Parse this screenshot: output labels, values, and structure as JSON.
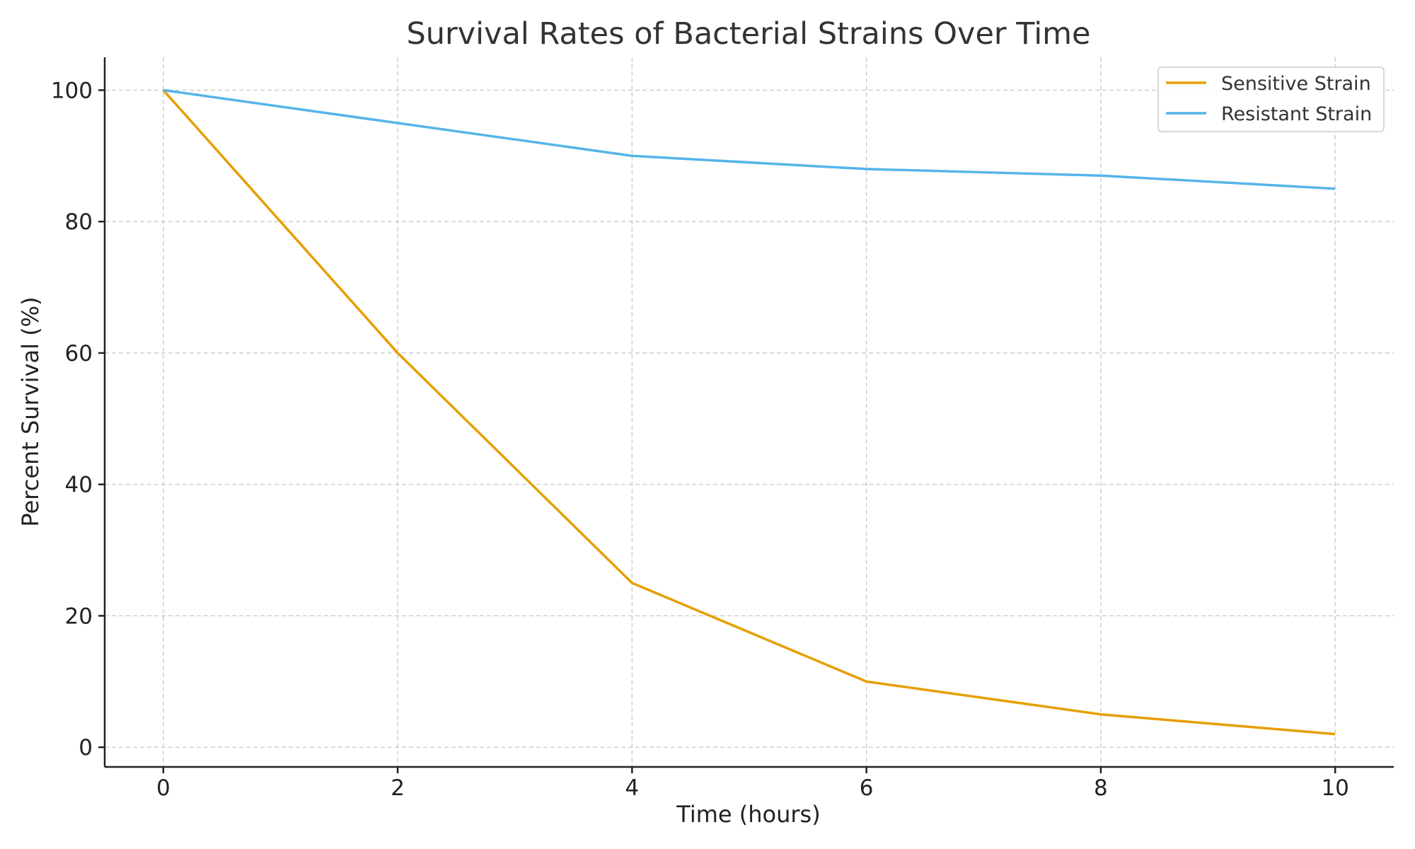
{
  "chart_data": {
    "type": "line",
    "title": "Survival Rates of Bacterial Strains Over Time",
    "xlabel": "Time (hours)",
    "ylabel": "Percent Survival (%)",
    "x": [
      0,
      2,
      4,
      6,
      8,
      10
    ],
    "x_ticks": [
      0,
      2,
      4,
      6,
      8,
      10
    ],
    "y_ticks": [
      0,
      20,
      40,
      60,
      80,
      100
    ],
    "xlim": [
      -0.5,
      10.5
    ],
    "ylim": [
      -3,
      105
    ],
    "grid": true,
    "legend_position": "top-right",
    "series": [
      {
        "name": "Sensitive Strain",
        "color": "#E69F00",
        "values": [
          100,
          60,
          25,
          10,
          5,
          2
        ]
      },
      {
        "name": "Resistant Strain",
        "color": "#56B4E9",
        "values": [
          100,
          95,
          90,
          88,
          87,
          85
        ]
      }
    ]
  }
}
